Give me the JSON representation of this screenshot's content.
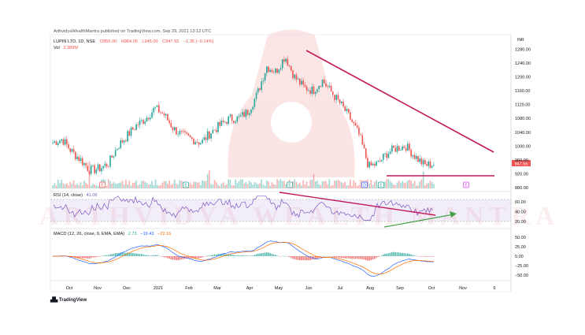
{
  "header": {
    "published": "ArthvidyaWealthMantra published on TradingView.com, Sep 29, 2021 13:12 UTC",
    "currency": "INR"
  },
  "symbol": {
    "name": "LUPIN LTD, 1D, NSE",
    "open": "O955.00",
    "high": "H964.05",
    "low": "L945.00",
    "close": "C947.55",
    "change": "−1.35 (−0.14%)"
  },
  "volume": {
    "label": "Vol",
    "value": "3.389M"
  },
  "rsi": {
    "label": "RSI (14, close)",
    "value": "41.06"
  },
  "macd": {
    "label": "MACD (12, 26, close, 9, EMA, EMA)",
    "v1": "2.73",
    "v2": "−19.43",
    "v3": "−22.16"
  },
  "price_axis": [
    "1280.00",
    "1240.00",
    "1200.00",
    "1160.00",
    "1120.00",
    "1080.00",
    "1040.00",
    "1000.00",
    "960.00",
    "920.00",
    "880.00"
  ],
  "price_tag": "947.55",
  "rsi_axis": [
    "60.00",
    "40.00",
    "20.00"
  ],
  "macd_axis": [
    "50.00",
    "25.00",
    "0.00",
    "−25.00",
    "−50.00"
  ],
  "time_axis": [
    "Oct",
    "Nov",
    "Dec",
    "2021",
    "Feb",
    "Mar",
    "Apr",
    "May",
    "Jun",
    "Jul",
    "Aug",
    "Sep",
    "Oct",
    "Nov",
    "6"
  ],
  "markers": [
    "E",
    "E",
    "E",
    "D",
    "E",
    "E"
  ],
  "watermark": "ARTHVIDYA WEALTH MANTRA",
  "footer": "TradingView",
  "colors": {
    "up": "#26a69a",
    "down": "#ef5350",
    "trendline": "#c2185b",
    "rsi_line": "#7e57c2",
    "arrow": "#43a047",
    "macd": "#2962ff",
    "signal": "#ff6d00"
  },
  "chart_data": {
    "type": "candlestick",
    "x": [
      "Oct",
      "Nov",
      "Dec",
      "2021",
      "Feb",
      "Mar",
      "Apr",
      "May",
      "Jun",
      "Jul",
      "Aug",
      "Sep",
      "Oct"
    ],
    "close_path": [
      1010,
      1020,
      985,
      960,
      930,
      935,
      950,
      1000,
      1030,
      1060,
      1080,
      1110,
      1090,
      1050,
      1030,
      1020,
      1010,
      1040,
      1060,
      1080,
      1080,
      1100,
      1150,
      1230,
      1215,
      1260,
      1200,
      1170,
      1160,
      1190,
      1155,
      1120,
      1080,
      1030,
      940,
      950,
      980,
      995,
      1000,
      970,
      945,
      947.55
    ],
    "ylim": [
      880,
      1290
    ],
    "last_close": 947.55,
    "rsi_ylim": [
      10,
      75
    ],
    "macd_ylim": [
      -60,
      60
    ]
  }
}
